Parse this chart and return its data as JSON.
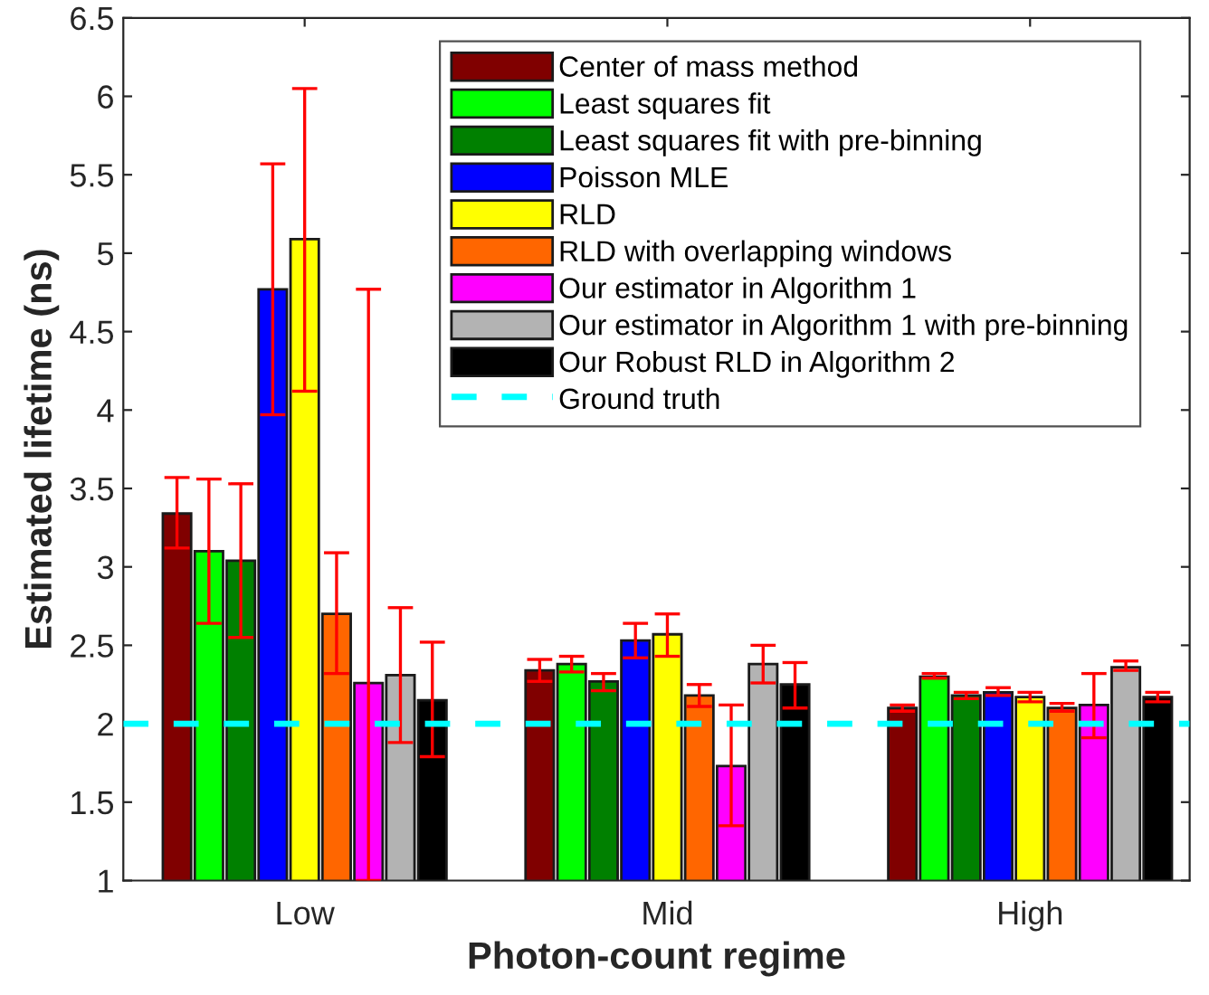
{
  "chart_data": {
    "type": "bar",
    "xlabel": "Photon-count regime",
    "ylabel": "Estimated lifetime (ns)",
    "categories": [
      "Low",
      "Mid",
      "High"
    ],
    "series": [
      {
        "name": "Center of mass method",
        "color": "#800000",
        "values": [
          3.34,
          2.34,
          2.1
        ],
        "errors": [
          [
            3.12,
            3.57
          ],
          [
            2.27,
            2.41
          ],
          [
            2.08,
            2.12
          ]
        ]
      },
      {
        "name": "Least squares fit",
        "color": "#00ff00",
        "values": [
          3.1,
          2.38,
          2.3
        ],
        "errors": [
          [
            2.64,
            3.56
          ],
          [
            2.33,
            2.43
          ],
          [
            2.29,
            2.32
          ]
        ]
      },
      {
        "name": "Least squares fit with pre-binning",
        "color": "#008000",
        "values": [
          3.04,
          2.27,
          2.18
        ],
        "errors": [
          [
            2.55,
            3.53
          ],
          [
            2.21,
            2.32
          ],
          [
            2.16,
            2.2
          ]
        ]
      },
      {
        "name": "Poisson MLE",
        "color": "#0000ff",
        "values": [
          4.77,
          2.53,
          2.2
        ],
        "errors": [
          [
            3.97,
            5.57
          ],
          [
            2.42,
            2.64
          ],
          [
            2.18,
            2.23
          ]
        ]
      },
      {
        "name": "RLD",
        "color": "#ffff00",
        "values": [
          5.09,
          2.57,
          2.17
        ],
        "errors": [
          [
            4.12,
            6.05
          ],
          [
            2.43,
            2.7
          ],
          [
            2.14,
            2.2
          ]
        ]
      },
      {
        "name": "RLD with overlapping windows",
        "color": "#ff6600",
        "values": [
          2.7,
          2.18,
          2.1
        ],
        "errors": [
          [
            2.32,
            3.09
          ],
          [
            2.11,
            2.25
          ],
          [
            2.08,
            2.13
          ]
        ]
      },
      {
        "name": "Our estimator in Algorithm 1",
        "color": "#ff00ff",
        "values": [
          2.26,
          1.73,
          2.12
        ],
        "errors": [
          [
            1.0,
            4.77
          ],
          [
            1.35,
            2.12
          ],
          [
            1.91,
            2.32
          ]
        ]
      },
      {
        "name": "Our estimator in Algorithm 1 with pre-binning",
        "color": "#b3b3b3",
        "values": [
          2.31,
          2.38,
          2.36
        ],
        "errors": [
          [
            1.88,
            2.74
          ],
          [
            2.26,
            2.5
          ],
          [
            2.34,
            2.4
          ]
        ]
      },
      {
        "name": "Our Robust RLD in Algorithm 2",
        "color": "#000000",
        "values": [
          2.15,
          2.25,
          2.17
        ],
        "errors": [
          [
            1.79,
            2.52
          ],
          [
            2.1,
            2.39
          ],
          [
            2.14,
            2.2
          ]
        ]
      }
    ],
    "ref_lines": [
      {
        "axis": "y",
        "value": 2,
        "label": "Ground truth",
        "color": "#00ffff",
        "line_style": "dashed"
      }
    ],
    "ylim": [
      1,
      6.5
    ],
    "yticks": [
      1,
      1.5,
      2,
      2.5,
      3,
      3.5,
      4,
      4.5,
      5,
      5.5,
      6,
      6.5
    ],
    "legend": "top right",
    "grid": false
  }
}
